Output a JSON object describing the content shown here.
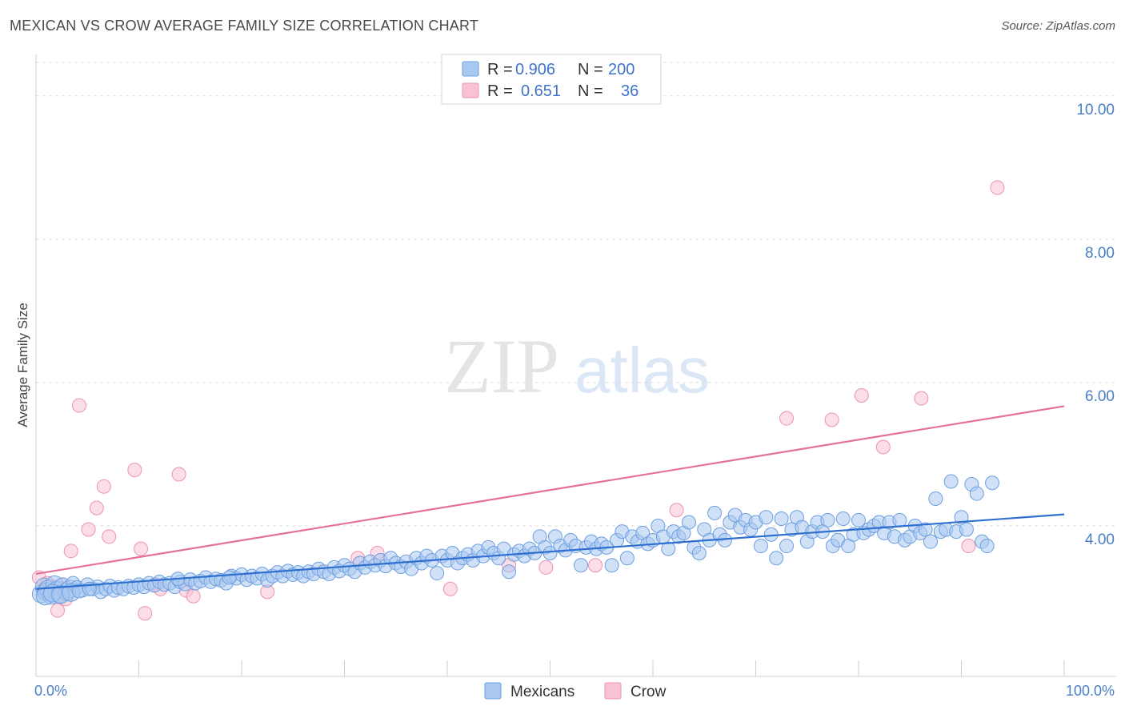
{
  "header": {
    "title": "MEXICAN VS CROW AVERAGE FAMILY SIZE CORRELATION CHART",
    "source": "Source: ZipAtlas.com"
  },
  "colors": {
    "mexicans_fill": "#a9c8f0",
    "mexicans_stroke": "#6d9fe0",
    "mexicans_line": "#2f6fcf",
    "crow_fill": "#f7c3d3",
    "crow_stroke": "#ec93b1",
    "crow_line": "#e5709a",
    "tick_text": "#4a7fc6",
    "grid": "#dddddd"
  },
  "legend": {
    "rows": [
      {
        "r_label": "R =",
        "r_value": "0.906",
        "n_label": "N =",
        "n_value": "200"
      },
      {
        "r_label": "R =",
        "r_value": "0.651",
        "n_label": "N =",
        "n_value": "36"
      }
    ]
  },
  "watermark": {
    "zip": "ZIP",
    "atlas": "atlas"
  },
  "chart_data": {
    "type": "scatter",
    "title": "MEXICAN VS CROW AVERAGE FAMILY SIZE CORRELATION CHART",
    "xlabel": "",
    "ylabel": "Average Family Size",
    "xlim": [
      0,
      100
    ],
    "ylim": [
      1.9,
      10.5
    ],
    "x_tick_labels": [
      {
        "value": 0,
        "label": "0.0%"
      },
      {
        "value": 100,
        "label": "100.0%"
      }
    ],
    "y_ticks": [
      {
        "value": 4,
        "label": "4.00"
      },
      {
        "value": 6,
        "label": "6.00"
      },
      {
        "value": 8,
        "label": "8.00"
      },
      {
        "value": 10,
        "label": "10.00"
      }
    ],
    "x_minor_ticks": [
      0,
      10,
      20,
      30,
      40,
      50,
      60,
      70,
      80,
      90,
      100
    ],
    "grid": true,
    "legend_position": "top-center",
    "series": [
      {
        "name": "Mexicans",
        "r": 0.906,
        "n": 200,
        "trend": [
          [
            0,
            3.12
          ],
          [
            100,
            4.16
          ]
        ],
        "points": [
          [
            0.5,
            3.05
          ],
          [
            0.8,
            3.15
          ],
          [
            1.0,
            3.08
          ],
          [
            1.2,
            3.12
          ],
          [
            1.5,
            3.03
          ],
          [
            1.8,
            3.18
          ],
          [
            2.0,
            3.1
          ],
          [
            2.3,
            3.05
          ],
          [
            2.6,
            3.15
          ],
          [
            3.0,
            3.08
          ],
          [
            3.3,
            3.12
          ],
          [
            3.6,
            3.2
          ],
          [
            4.0,
            3.14
          ],
          [
            4.5,
            3.1
          ],
          [
            5.0,
            3.18
          ],
          [
            5.5,
            3.12
          ],
          [
            6.0,
            3.15
          ],
          [
            6.3,
            3.08
          ],
          [
            6.8,
            3.12
          ],
          [
            7.2,
            3.16
          ],
          [
            7.6,
            3.1
          ],
          [
            8.0,
            3.14
          ],
          [
            8.5,
            3.12
          ],
          [
            9.0,
            3.16
          ],
          [
            9.5,
            3.14
          ],
          [
            10.0,
            3.18
          ],
          [
            10.5,
            3.15
          ],
          [
            11.0,
            3.2
          ],
          [
            11.5,
            3.17
          ],
          [
            12.0,
            3.22
          ],
          [
            12.5,
            3.18
          ],
          [
            13.0,
            3.2
          ],
          [
            13.5,
            3.15
          ],
          [
            14.0,
            3.22
          ],
          [
            14.5,
            3.19
          ],
          [
            15.0,
            3.25
          ],
          [
            15.5,
            3.2
          ],
          [
            16.0,
            3.23
          ],
          [
            16.5,
            3.28
          ],
          [
            17.0,
            3.22
          ],
          [
            17.5,
            3.26
          ],
          [
            18.0,
            3.24
          ],
          [
            18.5,
            3.2
          ],
          [
            19.0,
            3.3
          ],
          [
            19.5,
            3.27
          ],
          [
            20.0,
            3.32
          ],
          [
            20.5,
            3.25
          ],
          [
            21.0,
            3.3
          ],
          [
            21.5,
            3.27
          ],
          [
            22.0,
            3.33
          ],
          [
            22.5,
            3.24
          ],
          [
            23.0,
            3.3
          ],
          [
            23.5,
            3.35
          ],
          [
            24.0,
            3.3
          ],
          [
            24.5,
            3.37
          ],
          [
            25.0,
            3.32
          ],
          [
            25.5,
            3.35
          ],
          [
            26.0,
            3.3
          ],
          [
            26.5,
            3.36
          ],
          [
            27.0,
            3.33
          ],
          [
            27.5,
            3.4
          ],
          [
            28.0,
            3.36
          ],
          [
            28.5,
            3.33
          ],
          [
            29.0,
            3.42
          ],
          [
            29.5,
            3.37
          ],
          [
            30.0,
            3.45
          ],
          [
            30.5,
            3.4
          ],
          [
            31.0,
            3.36
          ],
          [
            31.5,
            3.48
          ],
          [
            32.0,
            3.42
          ],
          [
            32.5,
            3.5
          ],
          [
            33.0,
            3.45
          ],
          [
            33.5,
            3.52
          ],
          [
            34.0,
            3.44
          ],
          [
            34.5,
            3.55
          ],
          [
            35.0,
            3.48
          ],
          [
            35.5,
            3.43
          ],
          [
            36.0,
            3.5
          ],
          [
            36.5,
            3.4
          ],
          [
            37.0,
            3.55
          ],
          [
            37.5,
            3.48
          ],
          [
            38.0,
            3.58
          ],
          [
            38.5,
            3.52
          ],
          [
            39.0,
            3.34
          ],
          [
            39.5,
            3.58
          ],
          [
            40.0,
            3.52
          ],
          [
            40.5,
            3.62
          ],
          [
            41.0,
            3.48
          ],
          [
            41.5,
            3.55
          ],
          [
            42.0,
            3.6
          ],
          [
            42.5,
            3.52
          ],
          [
            43.0,
            3.65
          ],
          [
            43.5,
            3.58
          ],
          [
            44.0,
            3.7
          ],
          [
            44.5,
            3.62
          ],
          [
            45.0,
            3.55
          ],
          [
            45.5,
            3.68
          ],
          [
            46.0,
            3.36
          ],
          [
            46.5,
            3.6
          ],
          [
            47.0,
            3.65
          ],
          [
            47.5,
            3.58
          ],
          [
            48.0,
            3.68
          ],
          [
            48.5,
            3.62
          ],
          [
            49.0,
            3.85
          ],
          [
            49.5,
            3.7
          ],
          [
            50.0,
            3.62
          ],
          [
            50.5,
            3.85
          ],
          [
            51.0,
            3.72
          ],
          [
            51.5,
            3.66
          ],
          [
            52.0,
            3.8
          ],
          [
            52.5,
            3.72
          ],
          [
            53.0,
            3.45
          ],
          [
            53.5,
            3.7
          ],
          [
            54.0,
            3.78
          ],
          [
            54.5,
            3.68
          ],
          [
            55.0,
            3.75
          ],
          [
            55.5,
            3.7
          ],
          [
            56.0,
            3.45
          ],
          [
            56.5,
            3.8
          ],
          [
            57.0,
            3.92
          ],
          [
            57.5,
            3.55
          ],
          [
            58.0,
            3.85
          ],
          [
            58.5,
            3.78
          ],
          [
            59.0,
            3.9
          ],
          [
            59.5,
            3.75
          ],
          [
            60.0,
            3.8
          ],
          [
            60.5,
            4.0
          ],
          [
            61.0,
            3.85
          ],
          [
            61.5,
            3.68
          ],
          [
            62.0,
            3.92
          ],
          [
            62.5,
            3.85
          ],
          [
            63.0,
            3.9
          ],
          [
            63.5,
            4.05
          ],
          [
            64.0,
            3.7
          ],
          [
            64.5,
            3.62
          ],
          [
            65.0,
            3.95
          ],
          [
            65.5,
            3.8
          ],
          [
            66.0,
            4.18
          ],
          [
            66.5,
            3.88
          ],
          [
            67.0,
            3.8
          ],
          [
            67.5,
            4.05
          ],
          [
            68.0,
            4.15
          ],
          [
            68.5,
            3.98
          ],
          [
            69.0,
            4.08
          ],
          [
            69.5,
            3.95
          ],
          [
            70.0,
            4.05
          ],
          [
            70.5,
            3.72
          ],
          [
            71.0,
            4.12
          ],
          [
            71.5,
            3.88
          ],
          [
            72.0,
            3.55
          ],
          [
            72.5,
            4.1
          ],
          [
            73.0,
            3.72
          ],
          [
            73.5,
            3.95
          ],
          [
            74.0,
            4.12
          ],
          [
            74.5,
            3.98
          ],
          [
            75.0,
            3.78
          ],
          [
            75.5,
            3.92
          ],
          [
            76.0,
            4.05
          ],
          [
            76.5,
            3.92
          ],
          [
            77.0,
            4.08
          ],
          [
            77.5,
            3.72
          ],
          [
            78.0,
            3.8
          ],
          [
            78.5,
            4.1
          ],
          [
            79.0,
            3.72
          ],
          [
            79.5,
            3.88
          ],
          [
            80.0,
            4.08
          ],
          [
            80.5,
            3.9
          ],
          [
            81.0,
            3.95
          ],
          [
            81.5,
            4.0
          ],
          [
            82.0,
            4.05
          ],
          [
            82.5,
            3.9
          ],
          [
            83.0,
            4.05
          ],
          [
            83.5,
            3.85
          ],
          [
            84.0,
            4.08
          ],
          [
            84.5,
            3.8
          ],
          [
            85.0,
            3.85
          ],
          [
            85.5,
            4.0
          ],
          [
            86.0,
            3.9
          ],
          [
            86.5,
            3.95
          ],
          [
            87.0,
            3.78
          ],
          [
            87.5,
            4.38
          ],
          [
            88.0,
            3.92
          ],
          [
            88.5,
            3.95
          ],
          [
            89.0,
            4.62
          ],
          [
            89.5,
            3.92
          ],
          [
            90.0,
            4.12
          ],
          [
            90.5,
            3.95
          ],
          [
            91.0,
            4.58
          ],
          [
            91.5,
            4.45
          ],
          [
            92.0,
            3.78
          ],
          [
            92.5,
            3.72
          ],
          [
            93.0,
            4.6
          ],
          [
            0.9,
            3.02
          ],
          [
            1.6,
            3.06
          ],
          [
            2.4,
            3.04
          ],
          [
            3.4,
            3.07
          ],
          [
            4.2,
            3.09
          ],
          [
            5.2,
            3.12
          ],
          [
            13.8,
            3.26
          ],
          [
            18.8,
            3.28
          ]
        ]
      },
      {
        "name": "Crow",
        "r": 0.651,
        "n": 36,
        "trend": [
          [
            0,
            3.33
          ],
          [
            100,
            5.67
          ]
        ],
        "points": [
          [
            0.3,
            3.28
          ],
          [
            0.7,
            3.1
          ],
          [
            1.1,
            3.2
          ],
          [
            1.7,
            3.15
          ],
          [
            2.1,
            2.82
          ],
          [
            2.6,
            3.18
          ],
          [
            2.9,
            2.98
          ],
          [
            3.4,
            3.65
          ],
          [
            4.2,
            5.68
          ],
          [
            5.1,
            3.95
          ],
          [
            5.9,
            4.25
          ],
          [
            6.6,
            4.55
          ],
          [
            7.1,
            3.85
          ],
          [
            9.6,
            4.78
          ],
          [
            10.2,
            3.68
          ],
          [
            10.6,
            2.78
          ],
          [
            11.6,
            3.18
          ],
          [
            12.1,
            3.12
          ],
          [
            13.9,
            4.72
          ],
          [
            14.6,
            3.1
          ],
          [
            15.3,
            3.02
          ],
          [
            22.5,
            3.08
          ],
          [
            31.3,
            3.55
          ],
          [
            33.2,
            3.62
          ],
          [
            40.3,
            3.12
          ],
          [
            46.0,
            3.45
          ],
          [
            49.6,
            3.42
          ],
          [
            54.4,
            3.45
          ],
          [
            62.3,
            4.22
          ],
          [
            73.0,
            5.5
          ],
          [
            77.4,
            5.48
          ],
          [
            80.3,
            5.82
          ],
          [
            82.4,
            5.1
          ],
          [
            86.1,
            5.78
          ],
          [
            90.7,
            3.72
          ],
          [
            93.5,
            8.72
          ]
        ]
      }
    ]
  },
  "bottom_legend": {
    "items": [
      {
        "label": "Mexicans"
      },
      {
        "label": "Crow"
      }
    ]
  }
}
